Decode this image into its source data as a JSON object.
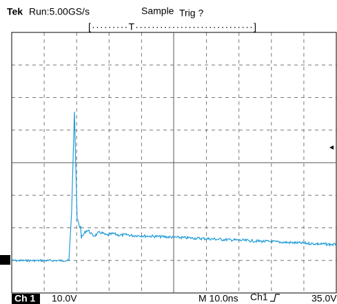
{
  "header": {
    "brand": "Tek",
    "status": "Run:5.00GS/s",
    "mode": "Sample",
    "trigger": "Trig ?",
    "record": "[·········T·····························]"
  },
  "footer": {
    "channel": "Ch 1",
    "scale": "10.0V",
    "timebase": "M 10.0ns",
    "trigger_source": "Ch1",
    "trigger_level": "35.0V"
  }
}
